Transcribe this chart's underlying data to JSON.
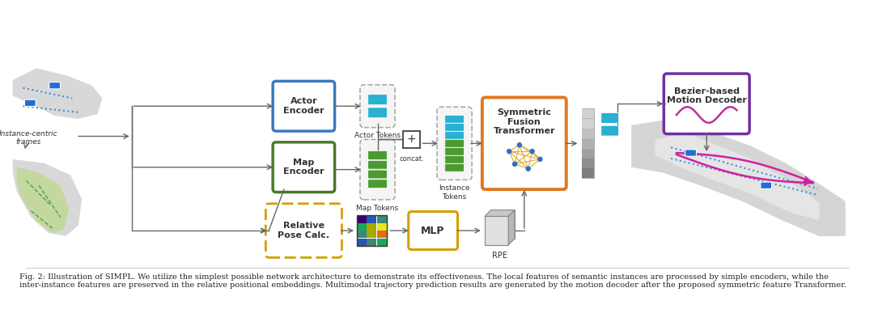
{
  "caption": "Fig. 2: Illustration of SIMPL. We utilize the simplest possible network architecture to demonstrate its effectiveness. The local features of semantic instances are processed by simple encoders, while the inter-instance features are preserved in the relative positional embeddings. Multimodal trajectory prediction results are generated by the motion decoder after the proposed symmetric feature Transformer.",
  "background_color": "#ffffff",
  "actor_encoder_label": "Actor\nEncoder",
  "map_encoder_label": "Map\nEncoder",
  "relative_pose_label": "Relative\nPose Calc.",
  "symmetric_fusion_label": "Symmetric\nFusion\nTransformer",
  "bezier_decoder_label": "Bezier-based\nMotion Decoder",
  "mlp_label": "MLP",
  "actor_tokens_label": "Actor Tokens",
  "map_tokens_label": "Map Tokens",
  "instance_tokens_label": "Instance\nTokens",
  "rpe_label": "RPE",
  "instance_centric_label": "Instance-centric\nframes",
  "concat_label": "concat.",
  "color_blue_encoder": "#3a7abf",
  "color_green_encoder": "#4a7a2a",
  "color_orange_box": "#e07820",
  "color_purple_box": "#7030a0",
  "color_yellow_dashed": "#d4a000",
  "color_cyan_token": "#2ab0d0",
  "color_green_token": "#4a9a30",
  "color_gray_output": "#aaaaaa",
  "color_arrow": "#555555"
}
